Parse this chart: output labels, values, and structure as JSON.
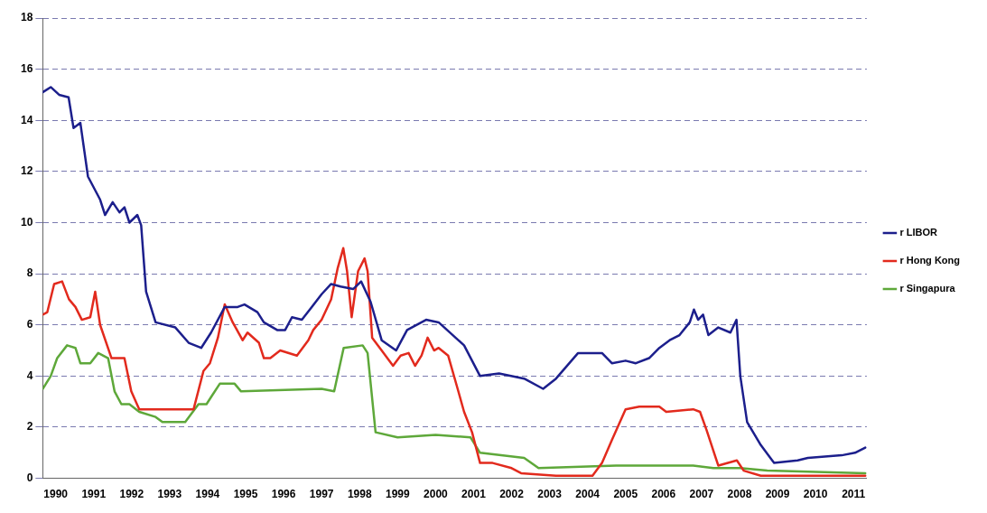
{
  "chart_data": {
    "type": "line",
    "xlim": [
      1989.66,
      2011.35
    ],
    "xticks": [
      1990,
      1991,
      1992,
      1993,
      1994,
      1995,
      1996,
      1997,
      1998,
      1999,
      2000,
      2001,
      2002,
      2003,
      2004,
      2005,
      2006,
      2007,
      2008,
      2009,
      2010,
      2011
    ],
    "ylim": [
      0,
      18
    ],
    "yticks": [
      0,
      2,
      4,
      6,
      8,
      10,
      12,
      14,
      16,
      18
    ],
    "grid": "y",
    "legend": "right",
    "marker": "none",
    "line_style": "solid",
    "series": [
      {
        "name": "r LIBOR",
        "color": "#1c1f8c",
        "x": [
          1989.66,
          1989.87,
          1990.09,
          1990.34,
          1990.47,
          1990.65,
          1990.85,
          1991.17,
          1991.3,
          1991.5,
          1991.68,
          1991.81,
          1991.94,
          1992.15,
          1992.25,
          1992.38,
          1992.63,
          1993.15,
          1993.5,
          1993.83,
          1994.09,
          1994.45,
          1994.79,
          1994.97,
          1995.31,
          1995.48,
          1995.83,
          1996.04,
          1996.22,
          1996.48,
          1996.74,
          1997.0,
          1997.25,
          1997.5,
          1997.83,
          1998.04,
          1998.29,
          1998.58,
          1998.96,
          1999.25,
          1999.75,
          2000.08,
          2000.75,
          2001.17,
          2001.67,
          2002.33,
          2002.83,
          2003.17,
          2003.75,
          2004.38,
          2004.64,
          2005.0,
          2005.27,
          2005.62,
          2005.89,
          2006.16,
          2006.42,
          2006.69,
          2006.8,
          2006.91,
          2007.04,
          2007.18,
          2007.44,
          2007.76,
          2007.92,
          2008.02,
          2008.2,
          2008.56,
          2008.91,
          2009.53,
          2009.8,
          2010.69,
          2011.04,
          2011.31
        ],
        "values": [
          15.1,
          15.3,
          15.0,
          14.9,
          13.7,
          13.9,
          11.8,
          10.9,
          10.3,
          10.8,
          10.4,
          10.6,
          10.0,
          10.3,
          9.9,
          7.3,
          6.1,
          5.9,
          5.3,
          5.1,
          5.7,
          6.7,
          6.7,
          6.8,
          6.5,
          6.1,
          5.8,
          5.8,
          6.3,
          6.2,
          6.7,
          7.2,
          7.6,
          7.5,
          7.4,
          7.7,
          6.9,
          5.4,
          5.0,
          5.8,
          6.2,
          6.1,
          5.2,
          4.0,
          4.1,
          3.9,
          3.5,
          3.9,
          4.9,
          4.9,
          4.5,
          4.6,
          4.5,
          4.7,
          5.1,
          5.4,
          5.6,
          6.1,
          6.6,
          6.2,
          6.4,
          5.6,
          5.9,
          5.7,
          6.2,
          4.0,
          2.2,
          1.3,
          0.6,
          0.7,
          0.8,
          0.9,
          1.0,
          1.2
        ]
      },
      {
        "name": "r Hong Kong",
        "color": "#e22a1d",
        "x": [
          1989.66,
          1989.78,
          1989.96,
          1990.17,
          1990.35,
          1990.52,
          1990.69,
          1990.91,
          1991.04,
          1991.17,
          1991.47,
          1991.81,
          1991.99,
          1992.2,
          1993.63,
          1993.89,
          1994.06,
          1994.27,
          1994.45,
          1994.66,
          1994.92,
          1995.05,
          1995.35,
          1995.48,
          1995.65,
          1995.91,
          1996.35,
          1996.65,
          1996.78,
          1997.0,
          1997.25,
          1997.42,
          1997.57,
          1997.67,
          1997.79,
          1997.96,
          1998.13,
          1998.21,
          1998.33,
          1998.58,
          1998.88,
          1999.08,
          1999.29,
          1999.46,
          1999.63,
          1999.79,
          1999.96,
          2000.08,
          2000.33,
          2000.58,
          2000.75,
          2000.96,
          2001.17,
          2001.5,
          2002.0,
          2002.25,
          2003.17,
          2003.96,
          2004.13,
          2004.38,
          2004.64,
          2004.82,
          2005.0,
          2005.36,
          2005.89,
          2006.07,
          2006.78,
          2006.96,
          2007.13,
          2007.44,
          2007.93,
          2008.11,
          2008.56,
          2011.31
        ],
        "values": [
          6.4,
          6.5,
          7.6,
          7.7,
          7.0,
          6.7,
          6.2,
          6.3,
          7.3,
          6.0,
          4.7,
          4.7,
          3.4,
          2.7,
          2.7,
          4.2,
          4.5,
          5.5,
          6.8,
          6.1,
          5.4,
          5.7,
          5.3,
          4.7,
          4.7,
          5.0,
          4.8,
          5.4,
          5.8,
          6.2,
          7.0,
          8.2,
          9.0,
          8.1,
          6.3,
          8.1,
          8.6,
          8.1,
          5.5,
          5.0,
          4.4,
          4.8,
          4.9,
          4.4,
          4.8,
          5.5,
          5.0,
          5.1,
          4.8,
          3.5,
          2.6,
          1.8,
          0.6,
          0.6,
          0.4,
          0.2,
          0.1,
          0.1,
          0.1,
          0.6,
          1.5,
          2.1,
          2.7,
          2.8,
          2.8,
          2.6,
          2.7,
          2.6,
          1.9,
          0.5,
          0.7,
          0.3,
          0.1,
          0.1
        ]
      },
      {
        "name": "r Singapura",
        "color": "#5ea83a",
        "x": [
          1989.66,
          1989.87,
          1990.04,
          1990.3,
          1990.52,
          1990.65,
          1990.91,
          1991.12,
          1991.38,
          1991.55,
          1991.73,
          1991.94,
          1992.2,
          1992.63,
          1992.81,
          1993.41,
          1993.76,
          1993.97,
          1994.1,
          1994.32,
          1994.71,
          1994.88,
          1997.0,
          1997.33,
          1997.58,
          1998.08,
          1998.21,
          1998.42,
          1999.0,
          2000.0,
          2000.92,
          2001.17,
          2002.33,
          2002.71,
          2004.75,
          2005.0,
          2006.78,
          2007.31,
          2008.02,
          2008.73,
          2011.31
        ],
        "values": [
          3.5,
          4.0,
          4.7,
          5.2,
          5.1,
          4.5,
          4.5,
          4.9,
          4.7,
          3.4,
          2.9,
          2.9,
          2.6,
          2.4,
          2.2,
          2.2,
          2.9,
          2.9,
          3.2,
          3.7,
          3.7,
          3.4,
          3.5,
          3.4,
          5.1,
          5.2,
          4.9,
          1.8,
          1.6,
          1.7,
          1.6,
          1.0,
          0.8,
          0.4,
          0.5,
          0.5,
          0.5,
          0.4,
          0.4,
          0.3,
          0.2
        ]
      }
    ]
  }
}
